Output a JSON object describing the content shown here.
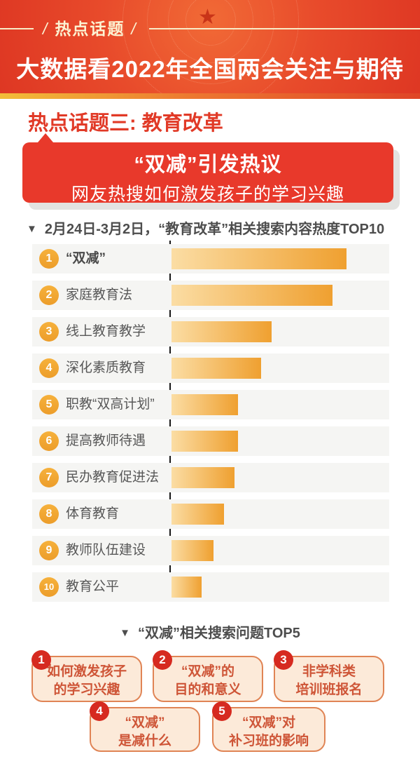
{
  "icons": {
    "triangle_down": "▼",
    "star": "★"
  },
  "header": {
    "tag_label": "热点话题",
    "title": "大数据看2022年全国两会关注与期待"
  },
  "section": {
    "title": "热点话题三: 教育改革"
  },
  "banner": {
    "line1": "“双减”引发热议",
    "line2": "网友热搜如何激发孩子的学习兴趣"
  },
  "chart_data": {
    "type": "bar",
    "orientation": "horizontal",
    "title": "2月24日-3月2日，“教育改革”相关搜索内容热度TOP10",
    "categories": [
      "“双减”",
      "家庭教育法",
      "线上教育教学",
      "深化素质教育",
      "职教“双高计划”",
      "提高教师待遇",
      "民办教育促进法",
      "体育教育",
      "教师队伍建设",
      "教育公平"
    ],
    "ranks": [
      "1",
      "2",
      "3",
      "4",
      "5",
      "6",
      "7",
      "8",
      "9",
      "10"
    ],
    "values": [
      100,
      92,
      57,
      51,
      38,
      38,
      36,
      30,
      24,
      17
    ],
    "xlabel": "",
    "ylabel": "",
    "xlim": [
      0,
      100
    ],
    "grid": false,
    "legend": "none",
    "note": "values are relative search-heat estimated from bar lengths; no numeric labels shown"
  },
  "top5": {
    "title": "“双减”相关搜索问题TOP5",
    "items": [
      {
        "rank": "1",
        "line1": "如何激发孩子",
        "line2": "的学习兴趣"
      },
      {
        "rank": "2",
        "line1": "“双减”的",
        "line2": "目的和意义"
      },
      {
        "rank": "3",
        "line1": "非学科类",
        "line2": "培训班报名"
      },
      {
        "rank": "4",
        "line1": "“双减”",
        "line2": "是减什么"
      },
      {
        "rank": "5",
        "line1": "“双减”对",
        "line2": "补习班的影响"
      }
    ]
  },
  "colors": {
    "brand_red": "#e8392b",
    "header_red": "#e84b2b",
    "gold": "#f2bd38",
    "cream_text": "#fcf3d3",
    "bar_light": "#fbdda4",
    "bar_orange": "#efa030",
    "rank_badge_orange": "#f0a532",
    "rank_badge_red": "#d62a20",
    "row_bg": "#f5f5f3",
    "card_bg": "#fcead9",
    "card_border": "#e08455",
    "card_text": "#ce5537",
    "text_dark": "#4d4d4d",
    "axis_black": "#161616"
  }
}
